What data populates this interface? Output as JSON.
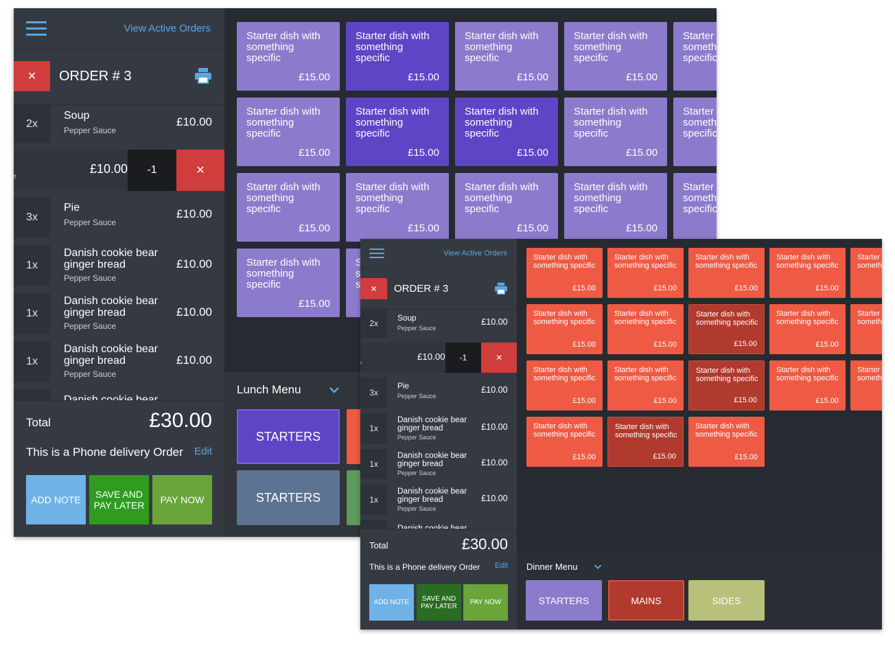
{
  "colors": {
    "accent_blue": "#5aa6e0",
    "danger_red": "#d13c3c",
    "lilac": "#8c7bcc",
    "violet": "#5e45c6",
    "coral": "#ee5a44",
    "dark_coral": "#b03a2d",
    "olive": "#b9c07a",
    "green": "#2e9c1f",
    "lime": "#6aa53b",
    "sky": "#6fb3e6"
  },
  "icons": {
    "menu": "hamburger-icon",
    "print": "printer-icon",
    "close": "close-icon",
    "dropdown": "chevron-down-icon"
  },
  "view_orders_label": "View Active Orders",
  "order_title": "ORDER # 3",
  "close_glyph": "✕",
  "minus_label": "-1",
  "edit_price": "£10.00",
  "edit_trailing": "e",
  "items": [
    {
      "qty": "2x",
      "name": "Soup",
      "sub": "Pepper Sauce",
      "price": "£10.00"
    },
    {
      "qty": "3x",
      "name": "Pie",
      "sub": "Pepper Sauce",
      "price": "£10.00"
    },
    {
      "qty": "1x",
      "name": "Danish cookie bear ginger bread",
      "sub": "Pepper Sauce",
      "price": "£10.00"
    },
    {
      "qty": "1x",
      "name": "Danish cookie bear ginger bread",
      "sub": "Pepper Sauce",
      "price": "£10.00"
    },
    {
      "qty": "1x",
      "name": "Danish cookie bear ginger bread",
      "sub": "Pepper Sauce",
      "price": "£10.00"
    },
    {
      "qty": "",
      "name": "Danish cookie bear",
      "sub": "",
      "price": ""
    }
  ],
  "total_label": "Total",
  "total_value": "£30.00",
  "delivery_label": "This is a Phone delivery Order",
  "edit_label": "Edit",
  "buttons": {
    "add_note": "ADD NOTE",
    "save_later": "SAVE AND PAY LATER",
    "pay_now": "PAY NOW"
  },
  "dish": {
    "name": "Starter dish with something specific",
    "price": "£15.00"
  },
  "screen1": {
    "menu_title": "Lunch Menu",
    "categories": [
      "STARTERS",
      "STARTERS"
    ],
    "grid_tones": [
      [
        "lilac",
        "violet",
        "lilac",
        "lilac",
        "lilac"
      ],
      [
        "lilac",
        "violet",
        "violet",
        "lilac",
        "lilac"
      ],
      [
        "lilac",
        "lilac",
        "lilac",
        "lilac",
        "lilac"
      ],
      [
        "lilac",
        "lilac"
      ]
    ]
  },
  "screen2": {
    "menu_title": "Dinner Menu",
    "categories": [
      "STARTERS",
      "MAINS",
      "SIDES"
    ],
    "grid_tones": [
      [
        "coral",
        "coral",
        "coral",
        "coral",
        "coral"
      ],
      [
        "coral",
        "coral",
        "dark",
        "coral",
        "coral"
      ],
      [
        "coral",
        "coral",
        "dark",
        "coral",
        "coral"
      ],
      [
        "coral",
        "dark",
        "coral"
      ]
    ]
  }
}
